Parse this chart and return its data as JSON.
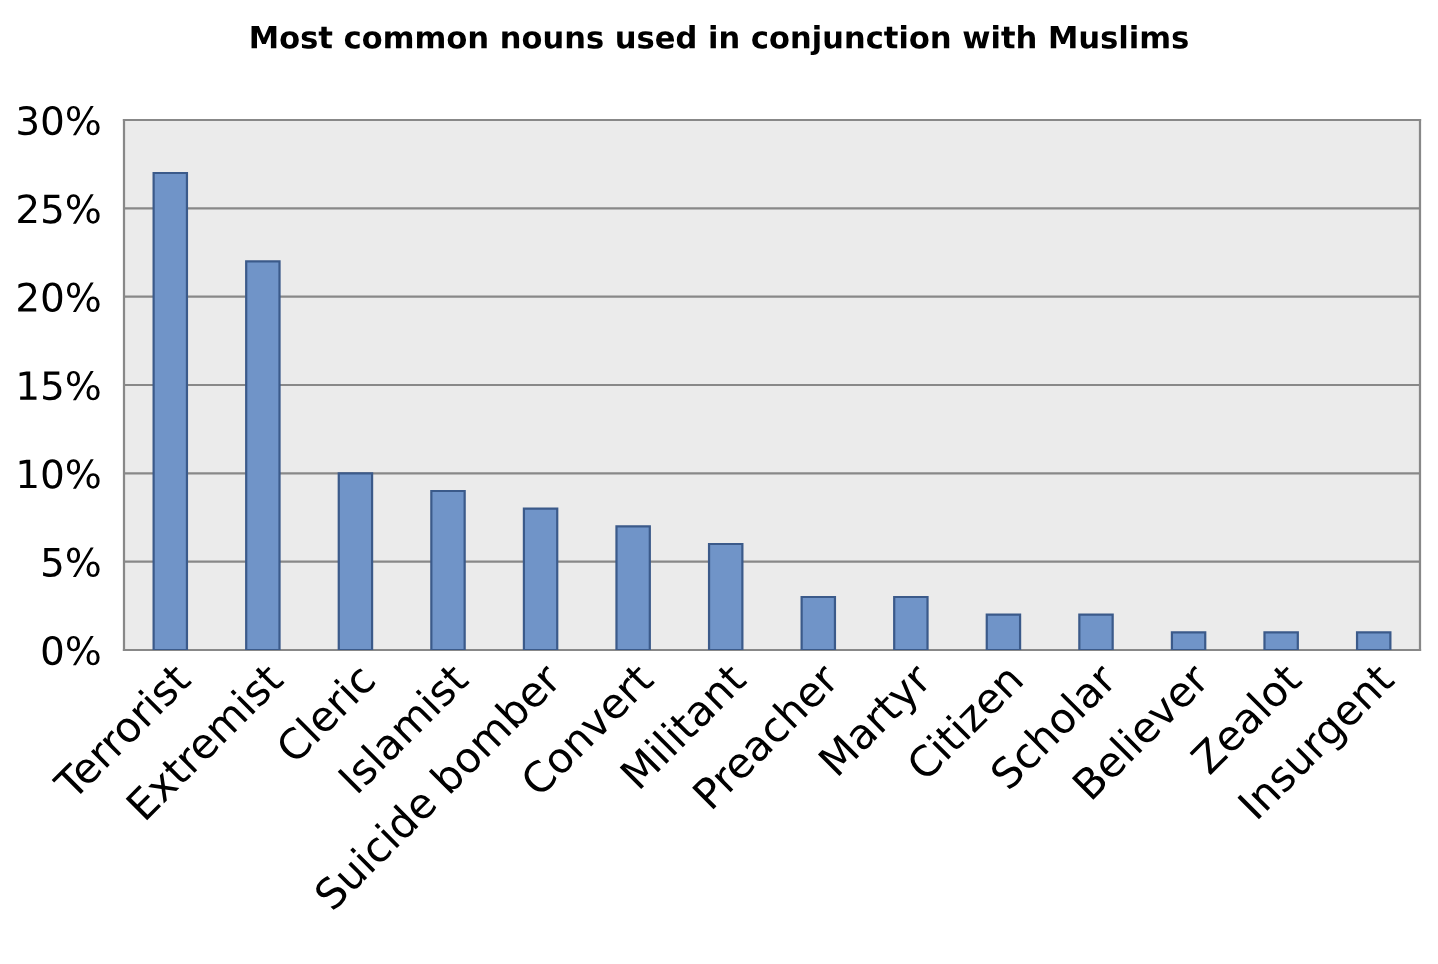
{
  "chart_data": {
    "type": "bar",
    "title": "Most common nouns used in conjunction with Muslims",
    "categories": [
      "Terrorist",
      "Extremist",
      "Cleric",
      "Islamist",
      "Suicide bomber",
      "Convert",
      "Militant",
      "Preacher",
      "Martyr",
      "Citizen",
      "Scholar",
      "Believer",
      "Zealot",
      "Insurgent"
    ],
    "values": [
      27,
      22,
      10,
      9,
      8,
      7,
      6,
      3,
      3,
      2,
      2,
      1,
      1,
      1
    ],
    "color": "#7094c8",
    "ylim": [
      0,
      30
    ],
    "yticks": [
      {
        "value": 0,
        "label": "0%"
      },
      {
        "value": 5,
        "label": "5%"
      },
      {
        "value": 10,
        "label": "10%"
      },
      {
        "value": 15,
        "label": "15%"
      },
      {
        "value": 20,
        "label": "20%"
      },
      {
        "value": 25,
        "label": "25%"
      },
      {
        "value": 30,
        "label": "30%"
      }
    ],
    "grid": "y"
  }
}
